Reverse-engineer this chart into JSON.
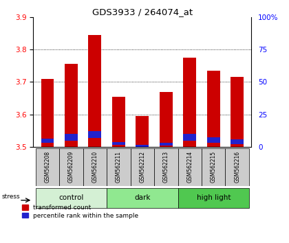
{
  "title": "GDS3933 / 264074_at",
  "samples": [
    "GSM562208",
    "GSM562209",
    "GSM562210",
    "GSM562211",
    "GSM562212",
    "GSM562213",
    "GSM562214",
    "GSM562215",
    "GSM562216"
  ],
  "groups": [
    {
      "name": "control",
      "indices": [
        0,
        1,
        2
      ],
      "color": "#d4f0d4"
    },
    {
      "name": "dark",
      "indices": [
        3,
        4,
        5
      ],
      "color": "#90e890"
    },
    {
      "name": "high light",
      "indices": [
        6,
        7,
        8
      ],
      "color": "#50c850"
    }
  ],
  "red_values": [
    3.71,
    3.755,
    3.845,
    3.655,
    3.595,
    3.67,
    3.775,
    3.735,
    3.715
  ],
  "blue_top": [
    3.526,
    3.541,
    3.549,
    3.516,
    3.506,
    3.514,
    3.541,
    3.529,
    3.523
  ],
  "blue_bot": [
    3.512,
    3.52,
    3.527,
    3.506,
    3.499,
    3.504,
    3.52,
    3.512,
    3.508
  ],
  "baseline": 3.5,
  "ylim_left": [
    3.5,
    3.9
  ],
  "ylim_right": [
    0,
    100
  ],
  "yticks_left": [
    3.5,
    3.6,
    3.7,
    3.8,
    3.9
  ],
  "yticks_right": [
    0,
    25,
    50,
    75,
    100
  ],
  "ytick_labels_right": [
    "0",
    "25",
    "50",
    "75",
    "100%"
  ],
  "bar_width": 0.55,
  "red_color": "#cc0000",
  "blue_color": "#2222cc",
  "stress_label": "stress",
  "legend_items": [
    "transformed count",
    "percentile rank within the sample"
  ],
  "grid_yticks": [
    3.6,
    3.7,
    3.8
  ]
}
